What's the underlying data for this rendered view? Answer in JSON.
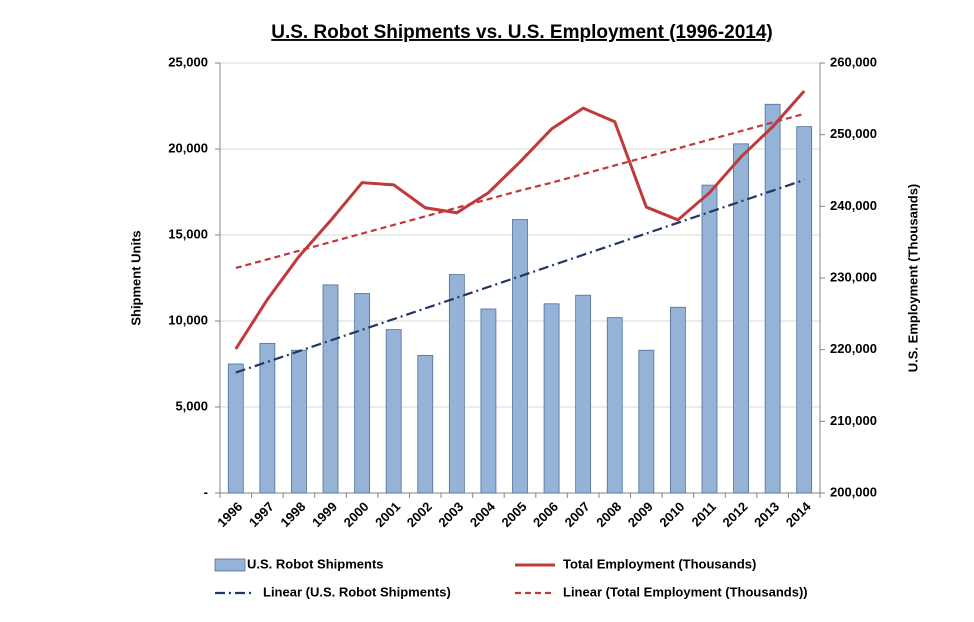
{
  "chart_data": {
    "type": "bar_line",
    "title": "U.S. Robot Shipments vs. U.S. Employment (1996-2014)",
    "y_label": "Shipment Units",
    "y2_label": "U.S. Employment (Thousands)",
    "categories": [
      "1996",
      "1997",
      "1998",
      "1999",
      "2000",
      "2001",
      "2002",
      "2003",
      "2004",
      "2005",
      "2006",
      "2007",
      "2008",
      "2009",
      "2010",
      "2011",
      "2012",
      "2013",
      "2014"
    ],
    "series": [
      {
        "name": "U.S. Robot Shipments",
        "type": "bar",
        "color": "#95b3d7",
        "axis": "y",
        "values": [
          7500,
          8700,
          8300,
          12100,
          11600,
          9500,
          8000,
          12700,
          10700,
          15900,
          11000,
          11500,
          10200,
          8300,
          10800,
          17900,
          20300,
          22600,
          21300
        ]
      },
      {
        "name": "Total Employment (Thousands)",
        "type": "line",
        "color": "#c0393b",
        "axis": "y2",
        "values": [
          220100,
          227000,
          233000,
          238000,
          243300,
          243000,
          239800,
          239100,
          241900,
          246200,
          250800,
          253700,
          251800,
          239900,
          238100,
          241900,
          246900,
          251100,
          256100
        ]
      },
      {
        "name": "Linear (U.S. Robot Shipments)",
        "type": "trend",
        "color": "#1f3864",
        "dash": "dashdot",
        "axis": "y",
        "values": [
          7000,
          7622,
          8244,
          8867,
          9489,
          10111,
          10733,
          11356,
          11978,
          12600,
          13222,
          13844,
          14467,
          15089,
          15711,
          16333,
          16956,
          17578,
          18200
        ]
      },
      {
        "name": "Linear (Total Employment (Thousands))",
        "type": "trend",
        "color": "#c0393b",
        "dash": "dash",
        "axis": "y2",
        "values": [
          231400,
          232600,
          233800,
          235000,
          236200,
          237400,
          238600,
          239800,
          241000,
          242200,
          243300,
          244500,
          245700,
          246900,
          248100,
          249300,
          250500,
          251700,
          252900
        ]
      }
    ],
    "ylim": [
      0,
      25000
    ],
    "yticks": [
      {
        "value": 0,
        "label": "-"
      },
      {
        "value": 5000,
        "label": "5,000"
      },
      {
        "value": 10000,
        "label": "10,000"
      },
      {
        "value": 15000,
        "label": "15,000"
      },
      {
        "value": 20000,
        "label": "20,000"
      },
      {
        "value": 25000,
        "label": "25,000"
      }
    ],
    "y2lim": [
      200000,
      260000
    ],
    "y2ticks": [
      {
        "value": 200000,
        "label": "200,000"
      },
      {
        "value": 210000,
        "label": "210,000"
      },
      {
        "value": 220000,
        "label": "220,000"
      },
      {
        "value": 230000,
        "label": "230,000"
      },
      {
        "value": 240000,
        "label": "240,000"
      },
      {
        "value": 250000,
        "label": "250,000"
      },
      {
        "value": 260000,
        "label": "260,000"
      }
    ],
    "grid": true,
    "legend": "bottom"
  }
}
